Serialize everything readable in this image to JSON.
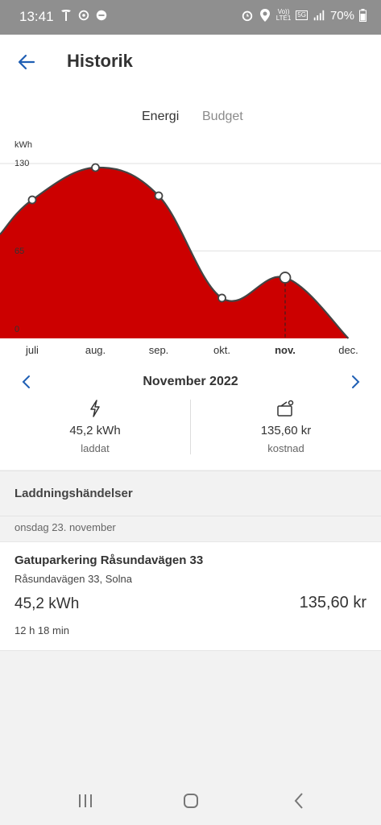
{
  "status_bar": {
    "time": "13:41",
    "battery": "70%",
    "left_icons": [
      "tesla-icon",
      "sync-icon",
      "app-icon"
    ],
    "right_icons": [
      "alarm-icon",
      "location-icon",
      "volte-icon",
      "5g-icon",
      "signal-icon",
      "battery-icon"
    ],
    "volte_label": "Vo))\nLTE1",
    "network_label": "5G"
  },
  "header": {
    "title": "Historik",
    "back_icon": "back-arrow-icon"
  },
  "tabs": [
    {
      "label": "Energi",
      "active": true
    },
    {
      "label": "Budget",
      "active": false
    }
  ],
  "chart_data": {
    "type": "area",
    "ylabel": "kWh",
    "yticks": [
      "130",
      "65",
      "0"
    ],
    "ylim": [
      0,
      130
    ],
    "categories": [
      "juli",
      "aug.",
      "sep.",
      "okt.",
      "nov.",
      "dec."
    ],
    "values": [
      103,
      127,
      106,
      30,
      45.2,
      0
    ],
    "selected_index": 4,
    "fill_color": "#cc0000",
    "line_color": "#444444",
    "grid": true
  },
  "month_nav": {
    "title": "November 2022",
    "prev_icon": "chevron-left-icon",
    "next_icon": "chevron-right-icon",
    "accent": "#1f5fb4"
  },
  "stats": {
    "charged": {
      "icon": "lightning-icon",
      "value": "45,2 kWh",
      "label": "laddat"
    },
    "cost": {
      "icon": "wallet-icon",
      "value": "135,60 kr",
      "label": "kostnad"
    }
  },
  "section": {
    "title": "Laddningshändelser",
    "date": "onsdag 23. november"
  },
  "event": {
    "name": "Gatuparkering Råsundavägen 33",
    "address": "Råsundavägen 33, Solna",
    "energy": "45,2 kWh",
    "cost": "135,60 kr",
    "duration": "12 h 18 min"
  },
  "navbar": {
    "icons": [
      "recent-apps-icon",
      "home-icon",
      "back-icon"
    ]
  }
}
